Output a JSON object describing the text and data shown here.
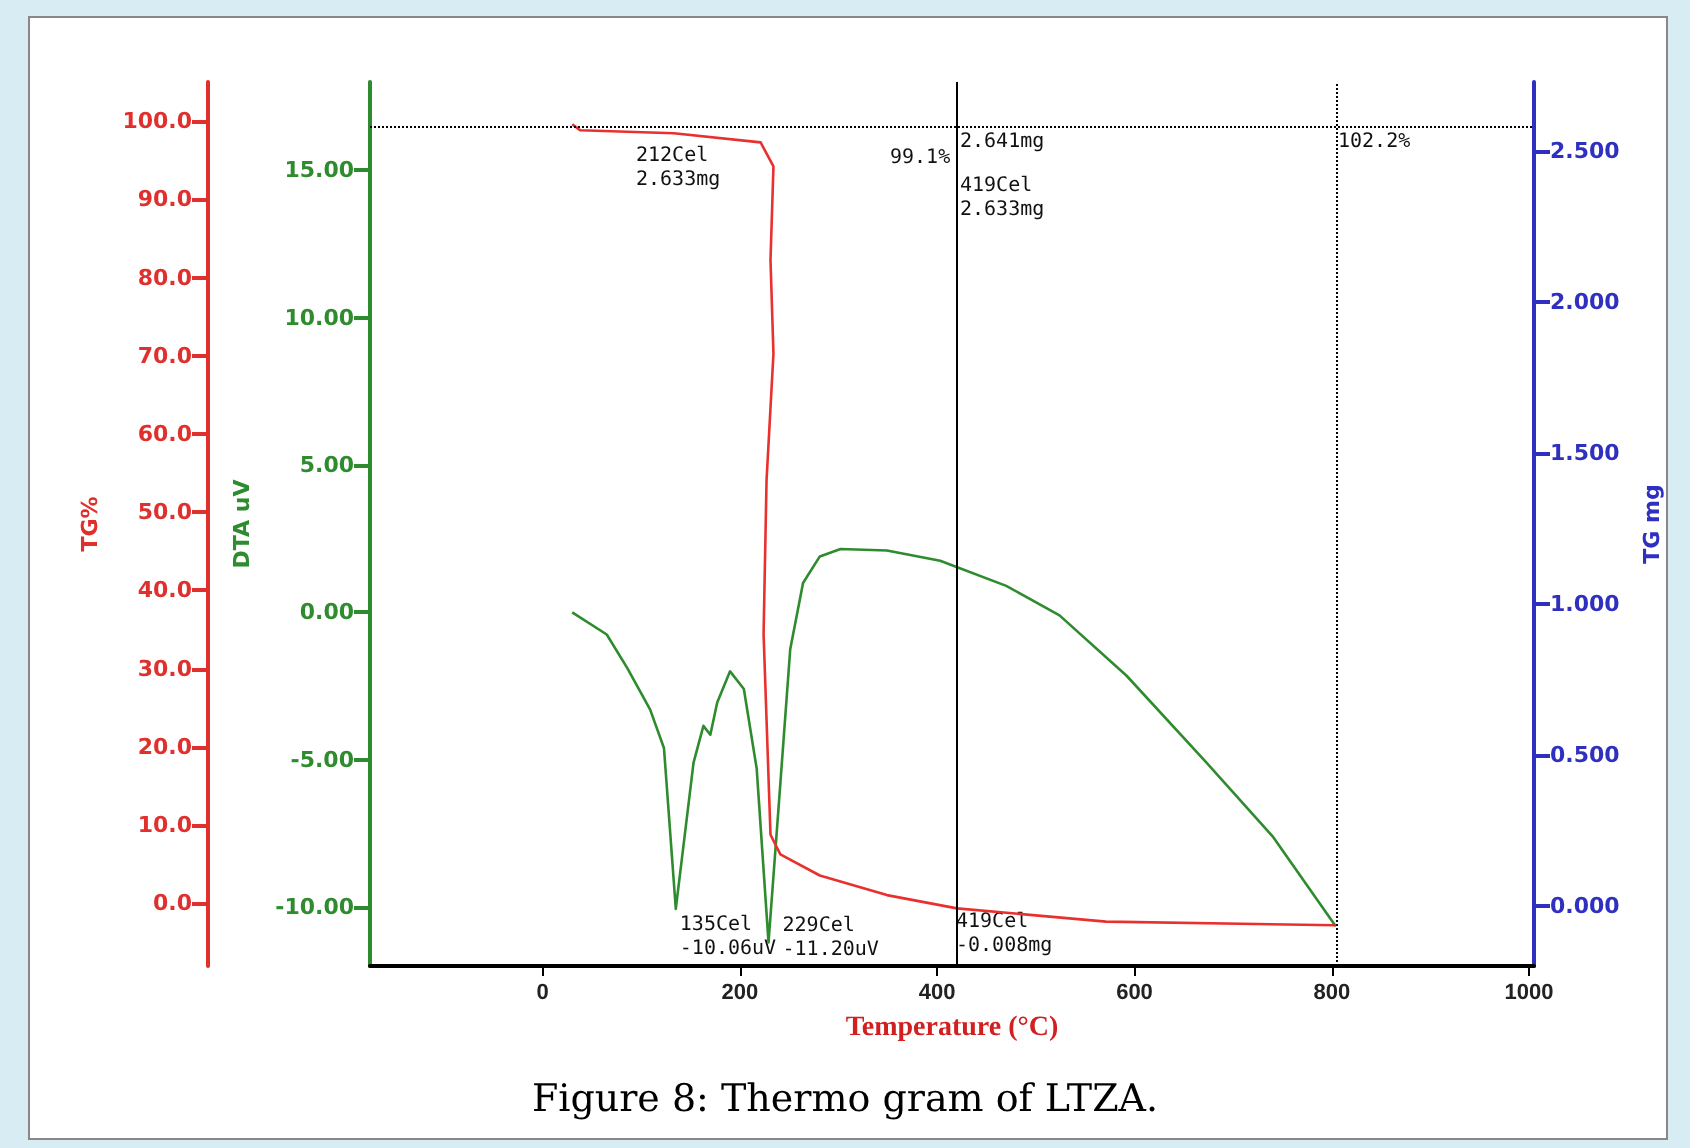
{
  "chart_data": {
    "type": "line",
    "title": "Figure 8: Thermo gram of LTZA.",
    "xlabel": "Temperature (°C)",
    "ylabel": "DTA uV",
    "y2label": "TG mg",
    "y3label": "TG%",
    "xlim": [
      -175,
      1005
    ],
    "xticks": [
      0,
      200,
      400,
      600,
      800,
      1000
    ],
    "ylim": [
      -12,
      18
    ],
    "yticks": [
      {
        "value": -10,
        "label": "-10.00"
      },
      {
        "value": -5,
        "label": "-5.00"
      },
      {
        "value": 0,
        "label": "0.00"
      },
      {
        "value": 5,
        "label": "5.00"
      },
      {
        "value": 10,
        "label": "10.00"
      },
      {
        "value": 15,
        "label": "15.00"
      }
    ],
    "y2lim": [
      -0.2,
      2.73
    ],
    "y2ticks": [
      {
        "value": 0,
        "label": "0.000"
      },
      {
        "value": 0.5,
        "label": "0.500"
      },
      {
        "value": 1,
        "label": "1.000"
      },
      {
        "value": 1.5,
        "label": "1.500"
      },
      {
        "value": 2,
        "label": "2.000"
      },
      {
        "value": 2.5,
        "label": "2.500"
      }
    ],
    "y3lim": [
      -8,
      105
    ],
    "y3ticks": [
      {
        "value": 0,
        "label": "0.0"
      },
      {
        "value": 10,
        "label": "10.0"
      },
      {
        "value": 20,
        "label": "20.0"
      },
      {
        "value": 30,
        "label": "30.0"
      },
      {
        "value": 40,
        "label": "40.0"
      },
      {
        "value": 50,
        "label": "50.0"
      },
      {
        "value": 60,
        "label": "60.0"
      },
      {
        "value": 70,
        "label": "70.0"
      },
      {
        "value": 80,
        "label": "80.0"
      },
      {
        "value": 90,
        "label": "90.0"
      },
      {
        "value": 100,
        "label": "100.0"
      }
    ],
    "series": [
      {
        "color": "#2e8b2e",
        "x": [
          30,
          65,
          86,
          109,
          123,
          135,
          153,
          163,
          170,
          177,
          190,
          204,
          217,
          229,
          241,
          251,
          264,
          281,
          302,
          349,
          403,
          470,
          524,
          592,
          673,
          740,
          804
        ],
        "values": [
          0,
          -0.75,
          -1.9,
          -3.3,
          -4.6,
          -10.06,
          -5.1,
          -3.85,
          -4.15,
          -3.06,
          -2.0,
          -2.6,
          -5.3,
          -11.2,
          -5.8,
          -1.25,
          1.0,
          1.9,
          2.15,
          2.1,
          1.75,
          0.9,
          -0.1,
          -2.15,
          -5.1,
          -7.6,
          -10.65
        ]
      },
      {
        "color": "#e8312f",
        "axis": "y2",
        "x": [
          30,
          38,
          133,
          221,
          234,
          231,
          234,
          227,
          224,
          231,
          241,
          281,
          349,
          420,
          571,
          804
        ],
        "values": [
          2.59,
          2.57,
          2.56,
          2.53,
          2.45,
          2.14,
          1.83,
          1.41,
          0.9,
          0.235,
          0.17,
          0.1,
          0.035,
          -0.009,
          -0.053,
          -0.065
        ]
      }
    ],
    "ref_lines": [
      {
        "axis": "x",
        "value": 420,
        "color": "#000000",
        "line_style": "solid"
      },
      {
        "axis": "x",
        "value": 804,
        "color": "#000000",
        "line_style": "dotted"
      },
      {
        "axis": "y2",
        "value": 2.58,
        "color": "#000000",
        "line_style": "dotted"
      }
    ],
    "annotations": [
      "212Cel\n2.633mg",
      "99.1%",
      "2.641mg",
      "419Cel\n2.633mg",
      "102.2%",
      {
        "text": "135Cel\n-10.06uV",
        "x": 135,
        "y": -10.06
      },
      {
        "text": "229Cel\n-11.20uV",
        "x": 229,
        "y": -11.2
      },
      "419Cel\n-0.008mg"
    ]
  }
}
